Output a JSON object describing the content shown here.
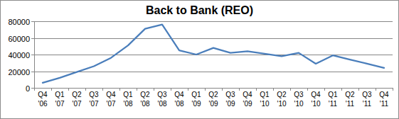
{
  "chart_data": {
    "type": "line",
    "title": "Back to Bank (REO)",
    "categories": [
      "Q4 '06",
      "Q1 '07",
      "Q2 '07",
      "Q3 '07",
      "Q4 '07",
      "Q1 '08",
      "Q2 '08",
      "Q3 '08",
      "Q4 '08",
      "Q1 '09",
      "Q2 '09",
      "Q3 '09",
      "Q4 '09",
      "Q1 '10",
      "Q2 '10",
      "Q3 '10",
      "Q4 '10",
      "Q1 '11",
      "Q2 '11",
      "Q3 '11",
      "Q4 '11"
    ],
    "values": [
      6000,
      12000,
      19000,
      26000,
      36000,
      51000,
      71000,
      76000,
      45000,
      40000,
      48000,
      42000,
      44000,
      41000,
      38000,
      42000,
      29000,
      39000,
      34000,
      29000,
      24000
    ],
    "color": "#4a7ebb",
    "ylim": [
      0,
      80000
    ],
    "yticks": [
      0,
      20000,
      40000,
      60000,
      80000
    ],
    "grid": true
  }
}
